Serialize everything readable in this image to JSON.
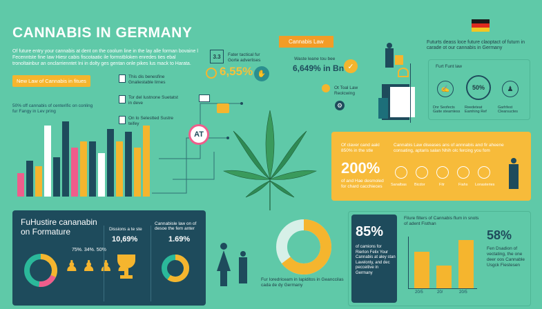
{
  "title": "CANNABIS IN GERMANY",
  "intro_text": "Of future entry your cannabis at dent on the coolum line in the lay alle forman bovaine l Fecenntste fine Iaw Hiesr cabis fiscotaatic ile formstbloken enredes ties ebal tronoltainbur an onclarrienntet Ini in dolty ges gentan onle pikes lus mack to Harata.",
  "new_law_tag": "New Law of Cannabis in fitues",
  "stats_left": "50% off cannabis of centerific on conling fur Fangy in Lev pring",
  "left_list": [
    {
      "text": "This dis benesfine Gnaliestable lirnes"
    },
    {
      "text": "Tor del Iustnone Suetatst in deve"
    },
    {
      "text": "On lo Selestted Sustre teifey"
    }
  ],
  "chart_data": [
    {
      "type": "bar",
      "values": [
        30,
        45,
        38,
        90,
        50,
        95,
        62,
        70,
        70,
        55,
        85,
        70,
        82,
        62,
        90
      ]
    },
    {
      "type": "bar",
      "categories": [
        "20/5",
        "20/",
        "20/5"
      ],
      "values": [
        45,
        28,
        60
      ]
    }
  ],
  "top_center": {
    "box_label": "3.3",
    "box_caption": "Fater tactical fur Gorte adverlises",
    "percent": "6,55%",
    "law_banner": "Cannabis Law",
    "law_text": "Waste leane tou bee",
    "law_value": "6,649% in Bn",
    "mail_caption": "Ot Toal Law Reolcwing",
    "at_badge": "AT"
  },
  "top_right": {
    "text": "Futurts deass loce future claoptact of futurn in carade ot our cannabis in Germany",
    "panel_title": "Furt Funt law",
    "percent": "50%",
    "items": [
      "Dnr Seofects Gaite steamless",
      "Reedeteat Eamhing Ref",
      "Garhfest Clearsuctes"
    ]
  },
  "yellow_panel": {
    "left_text": "Of claver cand aakl 850% in the stle",
    "big": "200%",
    "left_sub": "of and Hae desmoled for chard cacchieces",
    "right_text": "Cannabis Law diseases ans of annnabis and fir aheene consating, aptaris salan Nhih olc fercing you fom",
    "icon_labels": [
      "Sanalbas",
      "Bicdor",
      "Fitr",
      "Fiahs",
      "Lonasteries"
    ]
  },
  "bottom_left": {
    "title_line1": "FuHustire cananabin",
    "title_line2": "on Formature",
    "people_stat": "75%. 34%. 50%",
    "mid_label": "Dissions a te ste",
    "mid_value": "10,69%",
    "right_label": "Cannabisle law on of desoe the fem anter",
    "right_value": "1.69%"
  },
  "donut_caption": "Fur Ioredriceam in Iapiditos in Geanccilas cada de dy Germany",
  "bottom_right": {
    "big": "85%",
    "left_text": "of camions for Rierlon Felix Your Cannabis at aley stan Lavelonly, and dec pecceitive in Germany",
    "chart_title": "Filure filters of Cannabis flum in snots of adent Fisthan",
    "right_big": "58%",
    "right_text": "Fen Dsadion of vectating, the one deer oos Cannable Usgck Fiestesen"
  },
  "colors": {
    "background": "#5fc9a8",
    "dark": "#1e4b5c",
    "teal_panel": "#1d6f7a",
    "yellow": "#f7bb3a",
    "orange": "#f39c26",
    "pink": "#ef5d8b",
    "leaf": "#2f8a54"
  }
}
